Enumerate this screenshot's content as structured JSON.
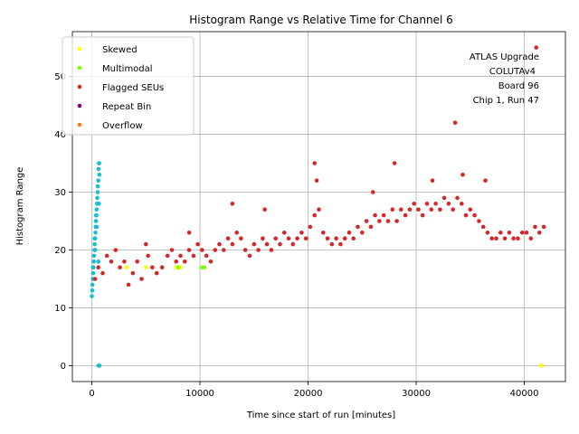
{
  "chart_data": {
    "type": "scatter",
    "title": "Histogram Range vs Relative Time for Channel 6",
    "xlabel": "Time since start of run [minutes]",
    "ylabel": "Histogram Range",
    "xlim": [
      -1800,
      43800
    ],
    "ylim": [
      -2.75,
      57.75
    ],
    "xticks": [
      0,
      10000,
      20000,
      30000,
      40000
    ],
    "yticks": [
      0,
      10,
      20,
      30,
      40,
      50
    ],
    "grid": true,
    "legend_position": "top-left",
    "annotation": [
      "ATLAS Upgrade",
      "COLUTAv4",
      "Board 96",
      "Chip 1, Run 47"
    ],
    "colors": {
      "normal": "#17becf",
      "skewed": "#ffff00",
      "multimodal": "#7fff00",
      "flagged": "#d62728",
      "repeat": "#800080",
      "overflow": "#ff7f0e"
    },
    "legend": [
      {
        "label": "Skewed",
        "color": "#ffff00"
      },
      {
        "label": "Multimodal",
        "color": "#7fff00"
      },
      {
        "label": "Flagged SEUs",
        "color": "#d62728"
      },
      {
        "label": "Repeat Bin",
        "color": "#800080"
      },
      {
        "label": "Overflow",
        "color": "#ff7f0e"
      }
    ],
    "series": [
      {
        "name": "Normal",
        "color": "#17becf",
        "x": [
          0,
          60,
          120,
          180,
          240,
          300,
          360,
          420,
          480,
          540,
          600,
          660,
          700,
          40,
          90,
          150,
          200,
          260,
          330,
          380,
          440,
          500,
          560,
          620,
          680,
          100,
          250,
          400,
          550,
          650,
          300,
          450,
          600,
          700,
          620
        ],
        "y": [
          12,
          14,
          16,
          18,
          20,
          22,
          24,
          26,
          28,
          30,
          32,
          35,
          33,
          13,
          15,
          17,
          19,
          21,
          23,
          25,
          27,
          29,
          31,
          34,
          35,
          17,
          22,
          26,
          31,
          28,
          20,
          24,
          18,
          0,
          0
        ]
      },
      {
        "name": "Flagged SEUs",
        "color": "#d62728",
        "x": [
          300,
          600,
          1000,
          1400,
          1800,
          2200,
          2600,
          3000,
          3400,
          3800,
          4200,
          4600,
          5000,
          5200,
          5600,
          6000,
          6500,
          7000,
          7400,
          7800,
          8200,
          8600,
          9000,
          9400,
          9800,
          10200,
          10600,
          11000,
          11400,
          11800,
          12200,
          12600,
          13000,
          13400,
          13800,
          14200,
          14600,
          15000,
          15400,
          15800,
          16200,
          16600,
          17000,
          17400,
          17800,
          18200,
          18600,
          19000,
          19400,
          19800,
          20200,
          20600,
          21000,
          21400,
          21800,
          22200,
          22600,
          23000,
          23400,
          23800,
          24200,
          24600,
          25000,
          25400,
          25800,
          26200,
          26600,
          27000,
          27400,
          27800,
          28200,
          28600,
          29000,
          29400,
          29800,
          30200,
          30600,
          31000,
          31400,
          31800,
          32200,
          32600,
          33000,
          33400,
          33800,
          34200,
          34600,
          35000,
          35400,
          35800,
          36200,
          36600,
          37000,
          37400,
          37800,
          38200,
          38600,
          39000,
          39400,
          39800,
          40200,
          40600,
          41000,
          41400,
          41800,
          9000,
          13000,
          16000,
          20600,
          20800,
          26000,
          28000,
          31500,
          33600,
          34300,
          36400,
          41100
        ],
        "y": [
          15,
          17,
          16,
          19,
          18,
          20,
          17,
          18,
          14,
          16,
          18,
          15,
          21,
          19,
          17,
          16,
          17,
          19,
          20,
          18,
          19,
          18,
          20,
          19,
          21,
          20,
          19,
          18,
          20,
          21,
          20,
          22,
          21,
          23,
          22,
          20,
          19,
          21,
          20,
          22,
          21,
          20,
          22,
          21,
          23,
          22,
          21,
          22,
          23,
          22,
          24,
          26,
          27,
          23,
          22,
          21,
          22,
          21,
          22,
          23,
          22,
          24,
          23,
          25,
          24,
          26,
          25,
          26,
          25,
          27,
          25,
          27,
          26,
          27,
          28,
          27,
          26,
          28,
          27,
          28,
          27,
          29,
          28,
          27,
          29,
          28,
          26,
          27,
          26,
          25,
          24,
          23,
          22,
          22,
          23,
          22,
          23,
          22,
          22,
          23,
          23,
          22,
          24,
          23,
          24,
          23,
          28,
          27,
          35,
          32,
          30,
          35,
          32,
          42,
          33,
          32,
          55
        ]
      },
      {
        "name": "Skewed",
        "color": "#ffff00",
        "x": [
          3200,
          5000,
          7800,
          8200,
          41600
        ],
        "y": [
          17,
          17,
          17,
          17,
          0
        ]
      },
      {
        "name": "Multimodal",
        "color": "#7fff00",
        "x": [
          8000,
          10200,
          10400
        ],
        "y": [
          17,
          17,
          17
        ]
      }
    ]
  }
}
